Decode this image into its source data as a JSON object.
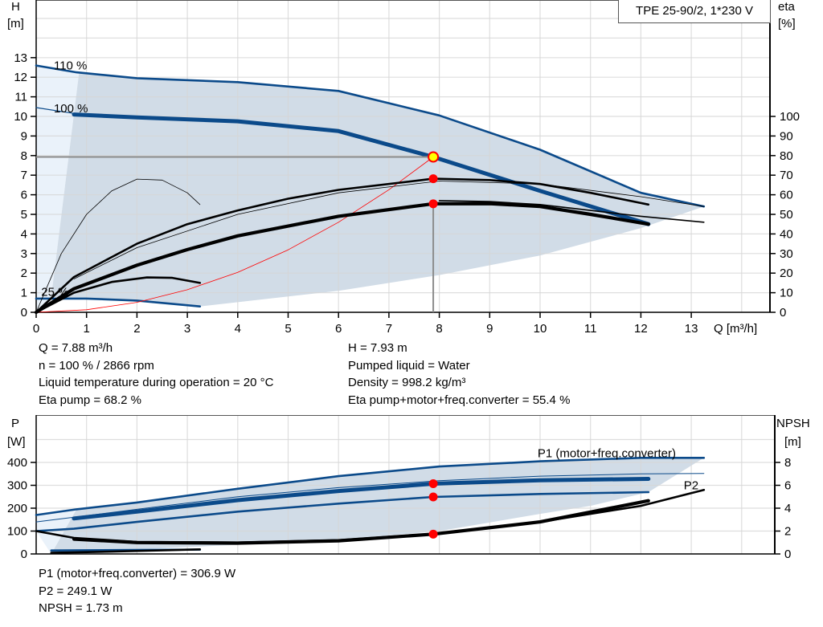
{
  "colors": {
    "blue": "#0b4a8a",
    "black": "#000000",
    "red": "#ff0000",
    "shade": "#d1dce7",
    "shade_light": "#eaf2fa",
    "grid": "#d6d6d6",
    "op_line": "#8c8c8c",
    "op_point_fill": "#ffff00"
  },
  "title": "TPE 25-90/2, 1*230 V",
  "chart_data": [
    {
      "type": "line",
      "name": "head-efficiency",
      "xlabel": "Q [m³/h]",
      "ylabel_left": [
        "H",
        "[m]"
      ],
      "ylabel_right": [
        "eta",
        "[%]"
      ],
      "xlim": [
        0,
        14.5
      ],
      "ylim_left": [
        0,
        16
      ],
      "ylim_right": [
        0,
        160
      ],
      "x_ticks": [
        0,
        1,
        2,
        3,
        4,
        5,
        6,
        7,
        8,
        9,
        10,
        11,
        12,
        13
      ],
      "y_ticks_left": [
        0,
        1,
        2,
        3,
        4,
        5,
        6,
        7,
        8,
        9,
        10,
        11,
        12,
        13
      ],
      "y_ticks_right": [
        0,
        10,
        20,
        30,
        40,
        50,
        60,
        70,
        80,
        90,
        100
      ],
      "grid": true,
      "annotations": [
        {
          "text": "110 %",
          "x": 0.35,
          "y": 12.6
        },
        {
          "text": "100 %",
          "x": 0.35,
          "y": 10.4
        },
        {
          "text": "25 %",
          "x": 0.1,
          "y": 1.05
        }
      ],
      "shaded_region_light": [
        [
          0,
          12.6
        ],
        [
          0.85,
          12.2
        ],
        [
          0.3,
          0.8
        ],
        [
          0,
          0
        ]
      ],
      "shaded_region": [
        [
          0.85,
          12.2
        ],
        [
          2,
          11.95
        ],
        [
          4,
          11.75
        ],
        [
          6,
          11.3
        ],
        [
          8,
          10.05
        ],
        [
          10,
          8.3
        ],
        [
          12,
          6.1
        ],
        [
          13.25,
          5.4
        ],
        [
          12,
          4.3
        ],
        [
          10,
          2.9
        ],
        [
          8,
          1.9
        ],
        [
          6,
          1.1
        ],
        [
          3.25,
          0.3
        ],
        [
          2,
          0.6
        ],
        [
          0.3,
          0.8
        ]
      ],
      "series": [
        {
          "axis": "left",
          "style": "blue-mid",
          "points": [
            [
              0,
              12.6
            ],
            [
              0.8,
              12.25
            ],
            [
              2,
              11.95
            ],
            [
              4,
              11.75
            ],
            [
              6,
              11.3
            ],
            [
              8,
              10.05
            ],
            [
              10,
              8.3
            ],
            [
              12,
              6.1
            ],
            [
              13.25,
              5.4
            ]
          ]
        },
        {
          "axis": "left",
          "style": "blue-thick",
          "points": [
            [
              0.75,
              10.1
            ],
            [
              2,
              9.95
            ],
            [
              4,
              9.75
            ],
            [
              6,
              9.25
            ],
            [
              7.88,
              7.93
            ],
            [
              10,
              6.2
            ],
            [
              12.15,
              4.5
            ]
          ]
        },
        {
          "axis": "left",
          "style": "blue-thin",
          "points": [
            [
              0,
              10.45
            ],
            [
              0.75,
              10.15
            ]
          ]
        },
        {
          "axis": "left",
          "style": "blue-mid",
          "points": [
            [
              0,
              0.7
            ],
            [
              1,
              0.7
            ],
            [
              2,
              0.6
            ],
            [
              3.25,
              0.3
            ]
          ]
        },
        {
          "axis": "left",
          "style": "red-thin",
          "points": [
            [
              0,
              0
            ],
            [
              1,
              0.13
            ],
            [
              2,
              0.51
            ],
            [
              3,
              1.15
            ],
            [
              4,
              2.04
            ],
            [
              5,
              3.19
            ],
            [
              6,
              4.6
            ],
            [
              7,
              6.26
            ],
            [
              7.88,
              7.93
            ]
          ]
        },
        {
          "axis": "right",
          "style": "black-hair",
          "points": [
            [
              0,
              0
            ],
            [
              0.5,
              30
            ],
            [
              1,
              50
            ],
            [
              1.5,
              62
            ],
            [
              2,
              68
            ],
            [
              2.5,
              67.5
            ],
            [
              3,
              61
            ],
            [
              3.25,
              55
            ]
          ]
        },
        {
          "axis": "right",
          "style": "black-mid",
          "points": [
            [
              0,
              0
            ],
            [
              0.75,
              10
            ],
            [
              1.5,
              15.5
            ],
            [
              2.2,
              17.8
            ],
            [
              2.7,
              17.6
            ],
            [
              3.25,
              15
            ]
          ]
        },
        {
          "axis": "right",
          "style": "black-mid",
          "points": [
            [
              0,
              0
            ],
            [
              0.75,
              18
            ],
            [
              2,
              35
            ],
            [
              3,
              45
            ],
            [
              4,
              52
            ],
            [
              5,
              58
            ],
            [
              6,
              62.5
            ],
            [
              7.88,
              68.2
            ],
            [
              9,
              67.5
            ],
            [
              10,
              65.5
            ],
            [
              11,
              61
            ],
            [
              12.15,
              55
            ]
          ]
        },
        {
          "axis": "right",
          "style": "black-hair",
          "points": [
            [
              0.75,
              17
            ],
            [
              2,
              33
            ],
            [
              4,
              50
            ],
            [
              6,
              61
            ],
            [
              8,
              67
            ],
            [
              10,
              65.5
            ],
            [
              12,
              59
            ],
            [
              13.25,
              54
            ]
          ]
        },
        {
          "axis": "right",
          "style": "black-thick",
          "points": [
            [
              0,
              0
            ],
            [
              0.75,
              12
            ],
            [
              2,
              24
            ],
            [
              3,
              32
            ],
            [
              4,
              39
            ],
            [
              6,
              49
            ],
            [
              7.88,
              55.4
            ],
            [
              9,
              55.5
            ],
            [
              10,
              54
            ],
            [
              11,
              50
            ],
            [
              12.15,
              45
            ]
          ]
        },
        {
          "axis": "right",
          "style": "black-thin",
          "points": [
            [
              8,
              57
            ],
            [
              9,
              56.5
            ],
            [
              10,
              55
            ],
            [
              11,
              52
            ],
            [
              12,
              49
            ],
            [
              13.25,
              46
            ]
          ]
        }
      ],
      "operating_point": {
        "Q": 7.88,
        "H": 7.93,
        "eta_pump": 68.2,
        "eta_total": 55.4
      }
    },
    {
      "type": "line",
      "name": "power-npsh",
      "ylabel_left": [
        "P",
        "[W]"
      ],
      "ylabel_right": [
        "NPSH",
        "[m]"
      ],
      "xlim": [
        0,
        14.5
      ],
      "ylim_left": [
        0,
        600
      ],
      "ylim_right": [
        0,
        12
      ],
      "y_ticks_left": [
        0,
        100,
        200,
        300,
        400
      ],
      "y_ticks_right": [
        0,
        2,
        4,
        6,
        8
      ],
      "grid": true,
      "annotations": [
        {
          "text": "P1 (motor+freq.converter)",
          "x": 9.95,
          "y": 440
        },
        {
          "text": "P2",
          "x": 12.85,
          "y": 300
        }
      ],
      "shaded_region_light": [
        [
          0,
          170
        ],
        [
          0.8,
          195
        ],
        [
          0.3,
          0
        ],
        [
          0,
          100
        ]
      ],
      "shaded_region": [
        [
          0.8,
          195
        ],
        [
          2,
          225
        ],
        [
          4,
          285
        ],
        [
          6,
          340
        ],
        [
          8,
          380
        ],
        [
          10,
          405
        ],
        [
          12,
          420
        ],
        [
          13.25,
          420
        ],
        [
          12.15,
          270
        ],
        [
          11,
          210
        ],
        [
          10,
          175
        ],
        [
          8,
          100
        ],
        [
          6,
          62
        ],
        [
          4,
          40
        ],
        [
          2,
          20
        ],
        [
          0.3,
          0
        ]
      ],
      "series": [
        {
          "axis": "left",
          "style": "blue-mid",
          "points": [
            [
              0,
              170
            ],
            [
              0.8,
              195
            ],
            [
              2,
              225
            ],
            [
              4,
              285
            ],
            [
              6,
              340
            ],
            [
              8,
              382
            ],
            [
              10,
              405
            ],
            [
              12,
              420
            ],
            [
              13.25,
              420
            ]
          ]
        },
        {
          "axis": "left",
          "style": "blue-hair",
          "points": [
            [
              0,
              140
            ],
            [
              2,
              195
            ],
            [
              4,
              250
            ],
            [
              6,
              290
            ],
            [
              8,
              320
            ],
            [
              10,
              340
            ],
            [
              12,
              350
            ],
            [
              13.25,
              352
            ]
          ]
        },
        {
          "axis": "left",
          "style": "blue-thick",
          "points": [
            [
              0.75,
              155
            ],
            [
              2,
              185
            ],
            [
              4,
              235
            ],
            [
              6,
              275
            ],
            [
              7.88,
              306.9
            ],
            [
              10,
              322
            ],
            [
              12.15,
              328
            ]
          ]
        },
        {
          "axis": "left",
          "style": "blue-mid",
          "points": [
            [
              0,
              100
            ],
            [
              0.75,
              110
            ],
            [
              2,
              140
            ],
            [
              4,
              185
            ],
            [
              6,
              220
            ],
            [
              7.88,
              249.1
            ],
            [
              10,
              262
            ],
            [
              12.15,
              270
            ]
          ]
        },
        {
          "axis": "left",
          "style": "blue-mid",
          "points": [
            [
              0.3,
              15
            ],
            [
              3.25,
              19
            ]
          ]
        },
        {
          "axis": "right",
          "style": "black-mid",
          "points": [
            [
              0.3,
              0.1
            ],
            [
              1.5,
              0.2
            ],
            [
              3.25,
              0.4
            ]
          ]
        },
        {
          "axis": "right",
          "style": "black-thick",
          "points": [
            [
              0.75,
              1.3
            ],
            [
              2,
              1.0
            ],
            [
              4,
              0.95
            ],
            [
              6,
              1.15
            ],
            [
              7.88,
              1.73
            ],
            [
              10,
              2.8
            ],
            [
              12.15,
              4.65
            ]
          ]
        },
        {
          "axis": "right",
          "style": "black-mid",
          "points": [
            [
              0,
              2.0
            ],
            [
              0.75,
              1.4
            ],
            [
              2,
              1.05
            ],
            [
              4,
              1.0
            ],
            [
              6,
              1.2
            ],
            [
              8,
              1.8
            ],
            [
              10,
              2.8
            ],
            [
              12,
              4.2
            ],
            [
              13.25,
              5.6
            ]
          ]
        }
      ],
      "operating_point": {
        "P1": 306.9,
        "P2": 249.1,
        "NPSH": 1.73
      }
    }
  ],
  "info_top_left": [
    "Q = 7.88 m³/h",
    "n = 100 % / 2866 rpm",
    "Liquid temperature during operation = 20 °C",
    "Eta pump = 68.2 %"
  ],
  "info_top_right": [
    "H = 7.93 m",
    "Pumped liquid = Water",
    "Density = 998.2 kg/m³",
    "Eta pump+motor+freq.converter = 55.4 %"
  ],
  "info_bottom": [
    "P1 (motor+freq.converter) = 306.9 W",
    "P2 = 249.1 W",
    "NPSH = 1.73 m"
  ]
}
